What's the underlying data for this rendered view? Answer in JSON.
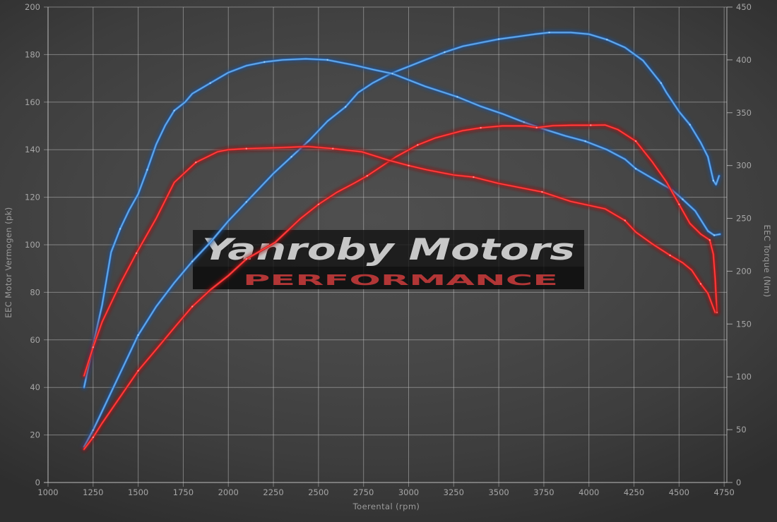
{
  "accent_colors": {
    "background": "#474747",
    "grid": "#c4c4c4",
    "axis_line": "#d2d2d2",
    "tick_text": "#a6a6a6",
    "blue_series": "#63a9e8",
    "red_series": "#e02020",
    "watermark_title_color": "#c7c7c7",
    "watermark_sub_color": "#b23636"
  },
  "chart_data": {
    "type": "line",
    "title": "",
    "xlabel": "Toerental (rpm)",
    "ylabel_left": "EEC Motor Vermogen (pk)",
    "ylabel_right": "EEC Torque (Nm)",
    "xlim": [
      1000,
      4765
    ],
    "ylim_left": [
      0,
      200
    ],
    "ylim_right": [
      0,
      450
    ],
    "x_ticks": [
      1000,
      1250,
      1500,
      1750,
      2000,
      2250,
      2500,
      2750,
      3000,
      3250,
      3500,
      3750,
      4000,
      4250,
      4500,
      4750
    ],
    "y_left_ticks": [
      0,
      20,
      40,
      60,
      80,
      100,
      120,
      140,
      160,
      180,
      200
    ],
    "y_right_ticks": [
      0,
      50,
      100,
      150,
      200,
      250,
      300,
      350,
      400,
      450
    ],
    "grid": "horizontal-from-left-axis + vertical",
    "legend": "none",
    "watermark": {
      "line1": "Yanroby Motors",
      "line2": "PERFORMANCE"
    },
    "series": [
      {
        "name": "blue-power",
        "axis": "left",
        "unit": "pk",
        "color_core": "#6cb0ec",
        "color_mid": "#3579c8",
        "color_glow": "#1a4f92",
        "color_marker": "#a8d4f5",
        "peak": {
          "value": 189,
          "rpm": 3850
        },
        "values": [
          [
            1200,
            15
          ],
          [
            1250,
            22
          ],
          [
            1300,
            30
          ],
          [
            1400,
            46
          ],
          [
            1500,
            62
          ],
          [
            1600,
            74
          ],
          [
            1700,
            84
          ],
          [
            1800,
            93
          ],
          [
            1900,
            101
          ],
          [
            2000,
            110
          ],
          [
            2100,
            118
          ],
          [
            2150,
            122
          ],
          [
            2250,
            130
          ],
          [
            2350,
            137
          ],
          [
            2450,
            144
          ],
          [
            2550,
            152
          ],
          [
            2650,
            158
          ],
          [
            2720,
            164
          ],
          [
            2800,
            168
          ],
          [
            2900,
            172
          ],
          [
            3000,
            175
          ],
          [
            3100,
            178
          ],
          [
            3200,
            181
          ],
          [
            3300,
            183.5
          ],
          [
            3400,
            185
          ],
          [
            3500,
            186.5
          ],
          [
            3600,
            187.5
          ],
          [
            3700,
            188.6
          ],
          [
            3780,
            189.3
          ],
          [
            3900,
            189.3
          ],
          [
            4000,
            188.6
          ],
          [
            4100,
            186.3
          ],
          [
            4200,
            183
          ],
          [
            4300,
            177.5
          ],
          [
            4400,
            168
          ],
          [
            4430,
            164
          ],
          [
            4500,
            156
          ],
          [
            4560,
            150.5
          ],
          [
            4620,
            143
          ],
          [
            4660,
            137
          ],
          [
            4690,
            127
          ],
          [
            4705,
            125.3
          ],
          [
            4722,
            129
          ]
        ]
      },
      {
        "name": "blue-torque",
        "axis": "right",
        "unit": "Nm",
        "color_core": "#6cb0ec",
        "color_mid": "#3579c8",
        "color_glow": "#1a4f92",
        "color_marker": "#a8d4f5",
        "peak": {
          "value": 401,
          "rpm": 2430
        },
        "values": [
          [
            1200,
            90
          ],
          [
            1250,
            130
          ],
          [
            1300,
            168
          ],
          [
            1350,
            218
          ],
          [
            1400,
            240
          ],
          [
            1450,
            258
          ],
          [
            1500,
            273
          ],
          [
            1550,
            296
          ],
          [
            1600,
            320
          ],
          [
            1650,
            338
          ],
          [
            1700,
            352
          ],
          [
            1760,
            360
          ],
          [
            1800,
            368
          ],
          [
            1900,
            378
          ],
          [
            2000,
            388
          ],
          [
            2100,
            394.5
          ],
          [
            2200,
            398
          ],
          [
            2300,
            400
          ],
          [
            2430,
            401
          ],
          [
            2550,
            400
          ],
          [
            2700,
            395
          ],
          [
            2800,
            391
          ],
          [
            2910,
            387
          ],
          [
            3000,
            381
          ],
          [
            3090,
            375
          ],
          [
            3270,
            365
          ],
          [
            3400,
            356
          ],
          [
            3520,
            349
          ],
          [
            3640,
            341
          ],
          [
            3740,
            335
          ],
          [
            3870,
            328
          ],
          [
            3980,
            323
          ],
          [
            4100,
            315
          ],
          [
            4200,
            306
          ],
          [
            4260,
            297
          ],
          [
            4350,
            288
          ],
          [
            4460,
            277
          ],
          [
            4520,
            268
          ],
          [
            4590,
            257
          ],
          [
            4660,
            238
          ],
          [
            4695,
            234
          ],
          [
            4727,
            235
          ]
        ]
      },
      {
        "name": "red-power",
        "axis": "left",
        "unit": "pk",
        "color_core": "#ff4545",
        "color_mid": "#cc1d1d",
        "color_glow": "#8f1010",
        "color_marker": "#ff9c9c",
        "peak": {
          "value": 150,
          "rpm": 3900
        },
        "values": [
          [
            1200,
            14
          ],
          [
            1250,
            19
          ],
          [
            1300,
            25
          ],
          [
            1400,
            36
          ],
          [
            1500,
            47
          ],
          [
            1600,
            56
          ],
          [
            1710,
            66
          ],
          [
            1800,
            74
          ],
          [
            1900,
            81
          ],
          [
            2000,
            87
          ],
          [
            2100,
            94
          ],
          [
            2260,
            101
          ],
          [
            2400,
            111
          ],
          [
            2500,
            117
          ],
          [
            2600,
            122
          ],
          [
            2700,
            126
          ],
          [
            2770,
            129
          ],
          [
            2890,
            135
          ],
          [
            2930,
            137
          ],
          [
            3050,
            142
          ],
          [
            3150,
            145
          ],
          [
            3300,
            148
          ],
          [
            3400,
            149.2
          ],
          [
            3520,
            150
          ],
          [
            3650,
            150
          ],
          [
            3710,
            149.3
          ],
          [
            3800,
            150.1
          ],
          [
            3900,
            150.3
          ],
          [
            4010,
            150.3
          ],
          [
            4090,
            150.4
          ],
          [
            4160,
            148.5
          ],
          [
            4260,
            143.6
          ],
          [
            4350,
            135
          ],
          [
            4430,
            126.4
          ],
          [
            4500,
            117
          ],
          [
            4560,
            109
          ],
          [
            4620,
            104.5
          ],
          [
            4670,
            102
          ],
          [
            4690,
            96
          ],
          [
            4700,
            86
          ],
          [
            4710,
            71.5
          ]
        ]
      },
      {
        "name": "red-torque",
        "axis": "right",
        "unit": "Nm",
        "color_core": "#ff4545",
        "color_mid": "#cc1d1d",
        "color_glow": "#8f1010",
        "color_marker": "#ff9c9c",
        "peak": {
          "value": 318,
          "rpm": 2440
        },
        "values": [
          [
            1200,
            101
          ],
          [
            1250,
            128
          ],
          [
            1300,
            152
          ],
          [
            1400,
            188
          ],
          [
            1490,
            217
          ],
          [
            1600,
            250
          ],
          [
            1700,
            284
          ],
          [
            1820,
            303
          ],
          [
            1940,
            313
          ],
          [
            2000,
            315
          ],
          [
            2100,
            316
          ],
          [
            2300,
            317
          ],
          [
            2440,
            318
          ],
          [
            2580,
            316
          ],
          [
            2740,
            313
          ],
          [
            2890,
            305
          ],
          [
            3000,
            300
          ],
          [
            3100,
            296
          ],
          [
            3250,
            291
          ],
          [
            3360,
            289
          ],
          [
            3500,
            283
          ],
          [
            3650,
            278
          ],
          [
            3740,
            275
          ],
          [
            3900,
            266
          ],
          [
            4090,
            259
          ],
          [
            4200,
            248
          ],
          [
            4260,
            237
          ],
          [
            4350,
            226
          ],
          [
            4450,
            215
          ],
          [
            4520,
            208
          ],
          [
            4570,
            201
          ],
          [
            4620,
            188
          ],
          [
            4660,
            179
          ],
          [
            4700,
            161
          ]
        ]
      }
    ]
  }
}
